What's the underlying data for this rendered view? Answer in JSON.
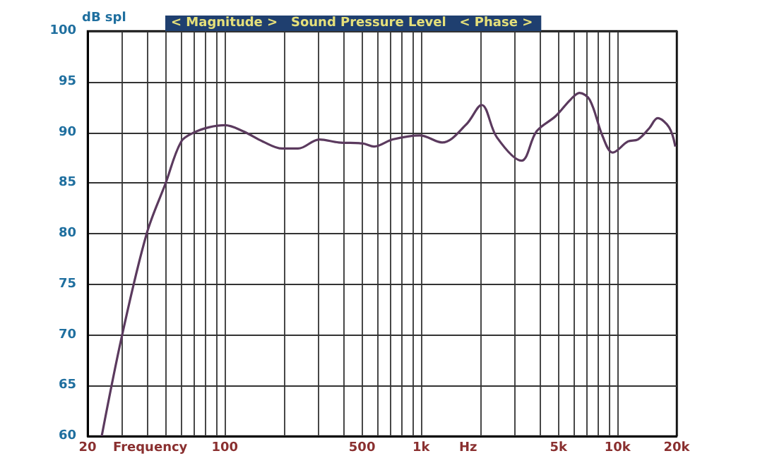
{
  "chart_data": {
    "type": "line",
    "title": "< Magnitude >   Sound Pressure Level   < Phase >",
    "ylabel": "dB spl",
    "xlabel": "Frequency",
    "annotations": [
      "Hz"
    ],
    "log": "x",
    "x": [
      23.6,
      30,
      40,
      50,
      60,
      70,
      83,
      100,
      124,
      156,
      196,
      236,
      303,
      380,
      505,
      576,
      716,
      984,
      1278,
      1700,
      2030,
      2430,
      3240,
      3870,
      4840,
      5740,
      6400,
      7220,
      8400,
      9440,
      11300,
      12700,
      14500,
      16000,
      18300,
      19700
    ],
    "series": [
      {
        "color": "#5b3a5e",
        "values": [
          60,
          70,
          80,
          85,
          89.1,
          90,
          90.5,
          90.7,
          90.1,
          89.1,
          88.4,
          88.4,
          89.3,
          89,
          88.9,
          88.6,
          89.3,
          89.7,
          89,
          90.8,
          92.7,
          89.5,
          87.2,
          90.1,
          91.6,
          93.2,
          93.9,
          93.2,
          89.6,
          88,
          89.1,
          89.3,
          90.4,
          91.4,
          90.5,
          88.6
        ]
      }
    ],
    "xlim": [
      20,
      20000
    ],
    "xticks": [
      {
        "value": 20,
        "label": "20"
      },
      {
        "value": 100,
        "label": "100"
      },
      {
        "value": 500,
        "label": "500"
      },
      {
        "value": 1000,
        "label": "1k"
      },
      {
        "value": 5000,
        "label": "5k"
      },
      {
        "value": 10000,
        "label": "10k"
      },
      {
        "value": 20000,
        "label": "20k"
      }
    ],
    "ylim": [
      60,
      100
    ],
    "yticks": [
      60,
      65,
      70,
      75,
      80,
      85,
      90,
      95,
      100
    ],
    "grid": true
  }
}
